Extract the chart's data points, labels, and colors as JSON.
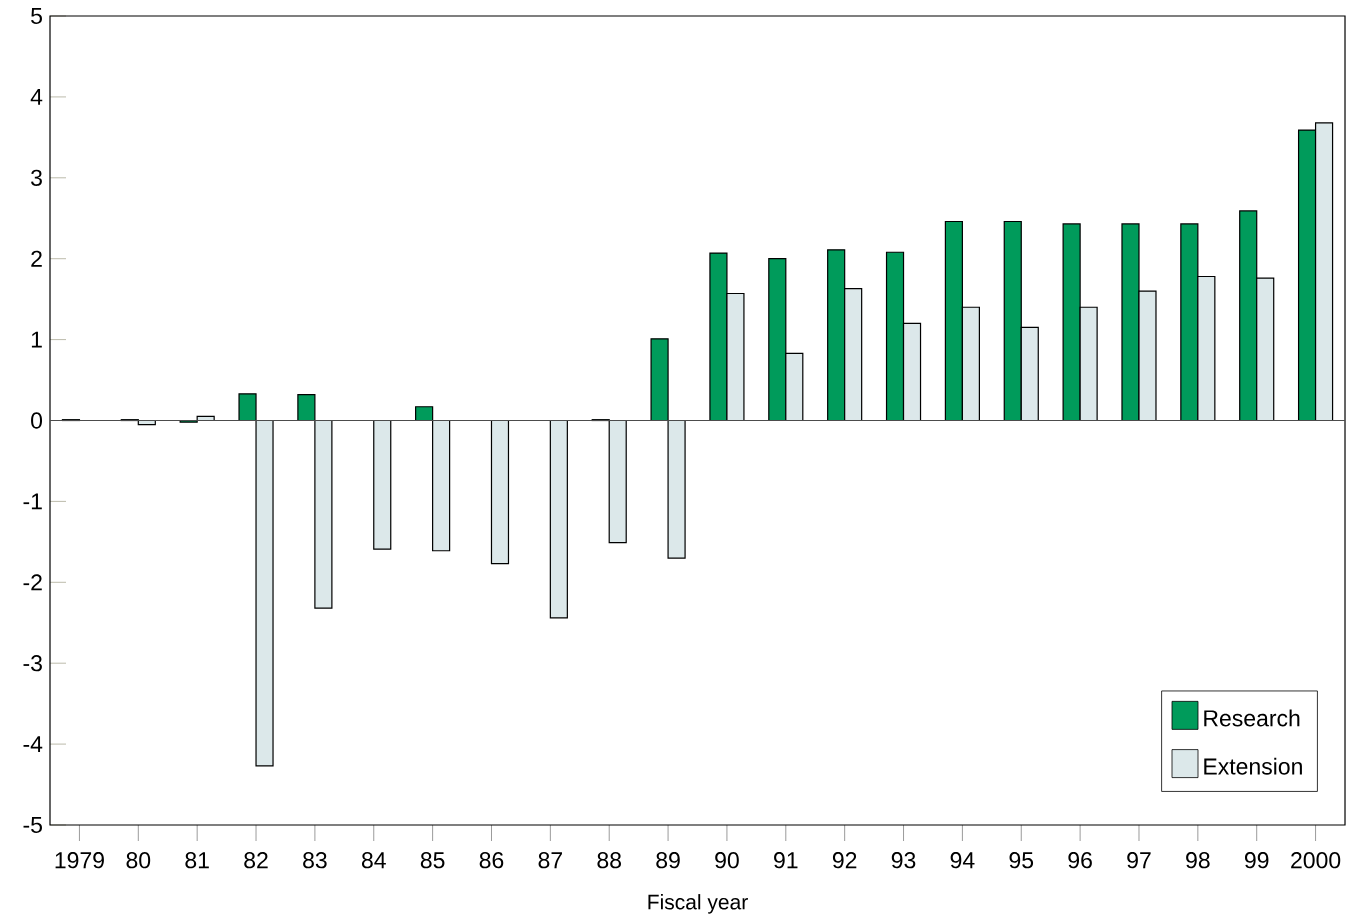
{
  "chart_data": {
    "type": "bar",
    "xlabel": "Fiscal year",
    "categories": [
      "1979",
      "80",
      "81",
      "82",
      "83",
      "84",
      "85",
      "86",
      "87",
      "88",
      "89",
      "90",
      "91",
      "92",
      "93",
      "94",
      "95",
      "96",
      "97",
      "98",
      "99",
      "2000"
    ],
    "series": [
      {
        "name": "Research",
        "color": "#009b5b",
        "values": [
          0.01,
          0.01,
          -0.02,
          0.33,
          0.32,
          null,
          0.17,
          null,
          null,
          0.01,
          1.01,
          2.07,
          2.0,
          2.11,
          2.08,
          2.46,
          2.46,
          2.43,
          2.43,
          2.43,
          2.59,
          3.59
        ]
      },
      {
        "name": "Extension",
        "color": "#dce8ea",
        "values": [
          null,
          -0.05,
          0.05,
          -4.27,
          -2.32,
          -1.59,
          -1.61,
          -1.77,
          -2.44,
          -1.51,
          -1.7,
          1.57,
          0.83,
          1.63,
          1.2,
          1.4,
          1.15,
          1.4,
          1.6,
          1.78,
          1.76,
          3.68
        ]
      }
    ],
    "ylim": [
      -5,
      5
    ],
    "yticks": [
      -5,
      -4,
      -3,
      -2,
      -1,
      0,
      1,
      2,
      3,
      4,
      5
    ],
    "legend": "bottom right"
  }
}
